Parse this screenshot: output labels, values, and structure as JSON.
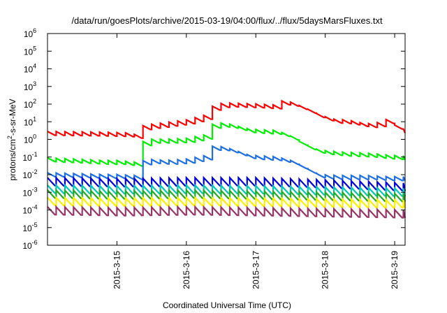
{
  "chart_data": {
    "type": "line",
    "title": "/data/run/goesPlots/archive/2015-03-19/04:00/flux/../flux/5daysMarsFluxes.txt",
    "xlabel": "Coordinated Universal Time (UTC)",
    "ylabel": {
      "main": "protons/cm",
      "sup": "2",
      "rest": "-s-sr-MeV"
    },
    "y_scale": "log",
    "y_ticks": [
      {
        "base": "10",
        "exp": "-6",
        "value": 1e-06
      },
      {
        "base": "10",
        "exp": "-5",
        "value": 1e-05
      },
      {
        "base": "10",
        "exp": "-4",
        "value": 0.0001
      },
      {
        "base": "10",
        "exp": "-3",
        "value": 0.001
      },
      {
        "base": "10",
        "exp": "-2",
        "value": 0.01
      },
      {
        "base": "10",
        "exp": "-1",
        "value": 0.1
      },
      {
        "base": "10",
        "exp": "0",
        "value": 1
      },
      {
        "base": "10",
        "exp": "1",
        "value": 10
      },
      {
        "base": "10",
        "exp": "2",
        "value": 100
      },
      {
        "base": "10",
        "exp": "3",
        "value": 1000
      },
      {
        "base": "10",
        "exp": "4",
        "value": 10000
      },
      {
        "base": "10",
        "exp": "5",
        "value": 100000
      },
      {
        "base": "10",
        "exp": "6",
        "value": 1000000
      }
    ],
    "ylim": [
      1e-06,
      1000000.0
    ],
    "x_ticks": [
      {
        "label": "2015-3-15",
        "value": 1.0
      },
      {
        "label": "2015-3-16",
        "value": 2.0
      },
      {
        "label": "2015-3-17",
        "value": 3.0
      },
      {
        "label": "2015-3-18",
        "value": 4.0
      },
      {
        "label": "2015-3-19",
        "value": 5.0
      }
    ],
    "xlim": [
      0.0,
      5.15
    ],
    "x_value_note": "x = days after 2015-03-14 00:00 UTC",
    "grid": false,
    "legend": "none",
    "series": [
      {
        "color": "#ff0000",
        "x": [
          0.0,
          0.4,
          0.8,
          1.0,
          1.2,
          1.25,
          1.32,
          1.4,
          1.7,
          2.0,
          2.3,
          2.35,
          2.42,
          2.6,
          3.0,
          3.25,
          3.3,
          3.5,
          3.7,
          3.9,
          4.1,
          4.3,
          4.5,
          4.6,
          4.75,
          4.85,
          5.0,
          5.15
        ],
        "y": [
          2.2,
          2.1,
          2.0,
          1.9,
          1.8,
          1.5,
          4.0,
          5.0,
          7.0,
          10.0,
          20.0,
          50.0,
          80.0,
          90.0,
          80.0,
          70.0,
          130.0,
          100.0,
          50.0,
          20.0,
          11.0,
          10.0,
          7.0,
          6.0,
          7.0,
          12.0,
          5.0,
          2.7
        ]
      },
      {
        "color": "#00ee00",
        "x": [
          0.0,
          0.4,
          0.8,
          1.0,
          1.25,
          1.32,
          1.4,
          1.7,
          2.0,
          2.3,
          2.35,
          2.42,
          2.6,
          2.9,
          3.3,
          3.5,
          3.7,
          3.9,
          4.2,
          4.6,
          4.9,
          5.15
        ],
        "y": [
          0.07,
          0.06,
          0.05,
          0.05,
          0.04,
          0.3,
          0.8,
          0.8,
          0.9,
          1.5,
          5.0,
          7.0,
          6.0,
          3.0,
          2.5,
          1.2,
          0.4,
          0.2,
          0.15,
          0.13,
          0.1,
          0.09
        ]
      },
      {
        "color": "#1e6fe6",
        "x": [
          0.0,
          0.4,
          0.8,
          1.0,
          1.25,
          1.32,
          1.4,
          1.7,
          2.0,
          2.3,
          2.35,
          2.42,
          2.6,
          2.9,
          3.3,
          3.5,
          3.7,
          3.9,
          4.2,
          4.6,
          4.9,
          5.15
        ],
        "y": [
          0.01,
          0.009,
          0.008,
          0.008,
          0.007,
          0.03,
          0.06,
          0.05,
          0.06,
          0.1,
          0.3,
          0.35,
          0.25,
          0.1,
          0.08,
          0.05,
          0.02,
          0.008,
          0.007,
          0.007,
          0.006,
          0.006
        ]
      },
      {
        "color": "#0000dd",
        "x": [
          0.0,
          1.0,
          2.0,
          3.0,
          4.0,
          5.15
        ],
        "y": [
          0.004,
          0.0035,
          0.004,
          0.004,
          0.003,
          0.002
        ]
      },
      {
        "color": "#00c8b4",
        "x": [
          0.0,
          1.0,
          2.0,
          3.0,
          4.0,
          5.15
        ],
        "y": [
          0.0015,
          0.0014,
          0.0015,
          0.0014,
          0.0012,
          0.001
        ]
      },
      {
        "color": "#22aa22",
        "x": [
          0.0,
          1.0,
          2.0,
          3.0,
          4.0,
          5.15
        ],
        "y": [
          0.0008,
          0.0007,
          0.0008,
          0.0007,
          0.0006,
          0.0005
        ]
      },
      {
        "color": "#ffee00",
        "x": [
          0.0,
          1.0,
          2.0,
          3.0,
          4.0,
          5.15
        ],
        "y": [
          0.0003,
          0.00028,
          0.0003,
          0.00028,
          0.00025,
          0.00022
        ]
      },
      {
        "color": "#993366",
        "x": [
          0.0,
          1.0,
          2.0,
          3.0,
          4.0,
          5.15
        ],
        "y": [
          9e-05,
          8e-05,
          9e-05,
          8e-05,
          7e-05,
          6e-05
        ]
      }
    ]
  }
}
